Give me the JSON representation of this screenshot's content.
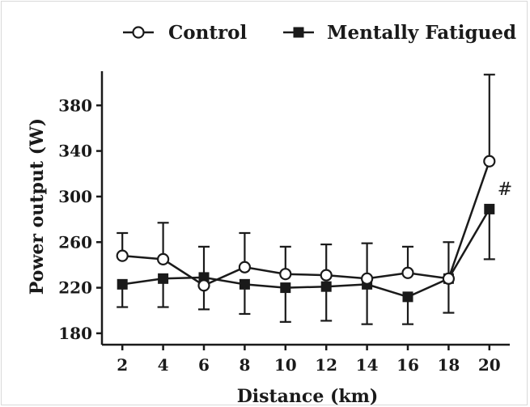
{
  "chart_data": {
    "type": "line",
    "xlabel": "Distance (km)",
    "ylabel": "Power output (W)",
    "x": [
      2,
      4,
      6,
      8,
      10,
      12,
      14,
      16,
      18,
      20
    ],
    "xlim": [
      1,
      21
    ],
    "ylim": [
      170,
      410
    ],
    "yticks": [
      180,
      220,
      260,
      300,
      340,
      380
    ],
    "grid": false,
    "legend_position": "top",
    "series": [
      {
        "name": "Control",
        "marker": "open-circle",
        "values": [
          248,
          245,
          222,
          238,
          232,
          231,
          228,
          233,
          228,
          331
        ],
        "error_upper": [
          268,
          277,
          256,
          268,
          256,
          258,
          259,
          256,
          260,
          407
        ]
      },
      {
        "name": "Mentally Fatigued",
        "marker": "filled-square",
        "values": [
          223,
          228,
          229,
          223,
          220,
          221,
          223,
          212,
          228,
          289
        ],
        "error_lower": [
          203,
          203,
          201,
          197,
          190,
          191,
          188,
          188,
          198,
          245
        ]
      }
    ],
    "annotations": [
      {
        "text": "#",
        "x": 20,
        "y": 300
      }
    ],
    "colors": {
      "line": "#1a1a1a",
      "marker_fill_open": "#ffffff",
      "marker_fill_solid": "#1a1a1a"
    }
  }
}
